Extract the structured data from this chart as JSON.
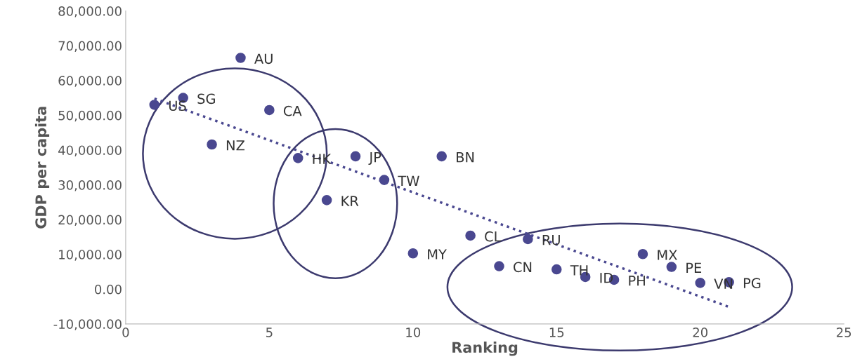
{
  "chart_data": {
    "type": "scatter",
    "xlabel": "Ranking",
    "ylabel": "GDP per capita",
    "xlim": [
      0,
      25
    ],
    "xticks": [
      0,
      5,
      10,
      15,
      20,
      25
    ],
    "ylim": [
      -10000,
      80000
    ],
    "yticks": [
      {
        "value": -10000,
        "label": "-10,000.00"
      },
      {
        "value": 0,
        "label": "0.00"
      },
      {
        "value": 10000,
        "label": "10,000.00"
      },
      {
        "value": 20000,
        "label": "20,000.00"
      },
      {
        "value": 30000,
        "label": "30,000.00"
      },
      {
        "value": 40000,
        "label": "40,000.00"
      },
      {
        "value": 50000,
        "label": "50,000.00"
      },
      {
        "value": 60000,
        "label": "60,000.00"
      },
      {
        "value": 70000,
        "label": "70,000.00"
      },
      {
        "value": 80000,
        "label": "80,000.00"
      }
    ],
    "grid": false,
    "legend": false,
    "marker": "circle",
    "series": [
      {
        "color": "#4a4890",
        "x": [
          1,
          2,
          3,
          4,
          5,
          6,
          7,
          8,
          9,
          10,
          11,
          12,
          13,
          14,
          15,
          16,
          17,
          18,
          19,
          20,
          21
        ],
        "values": [
          53000,
          55000,
          41600,
          66500,
          51500,
          37700,
          25600,
          38200,
          31400,
          10300,
          38200,
          15400,
          6600,
          14400,
          5700,
          3500,
          2700,
          10100,
          6400,
          1800,
          2000
        ]
      },
      {
        "type": "line",
        "color": "#4a4890",
        "line_style": "dotted",
        "marker": "none",
        "x": [
          1,
          21
        ],
        "values": [
          54800,
          -5100
        ]
      }
    ],
    "annotations": [
      {
        "text": "US",
        "x": 1,
        "y": 53000
      },
      {
        "text": "SG",
        "x": 2,
        "y": 55000
      },
      {
        "text": "NZ",
        "x": 3,
        "y": 41600
      },
      {
        "text": "AU",
        "x": 4,
        "y": 66500
      },
      {
        "text": "CA",
        "x": 5,
        "y": 51500
      },
      {
        "text": "HK",
        "x": 6,
        "y": 37700
      },
      {
        "text": "KR",
        "x": 7,
        "y": 25600
      },
      {
        "text": "JP",
        "x": 8,
        "y": 38200
      },
      {
        "text": "TW",
        "x": 9,
        "y": 31400
      },
      {
        "text": "MY",
        "x": 10,
        "y": 10300
      },
      {
        "text": "BN",
        "x": 11,
        "y": 38200
      },
      {
        "text": "CL",
        "x": 12,
        "y": 15400
      },
      {
        "text": "CN",
        "x": 13,
        "y": 6600
      },
      {
        "text": "RU",
        "x": 14,
        "y": 14400
      },
      {
        "text": "TH",
        "x": 15,
        "y": 5700
      },
      {
        "text": "ID",
        "x": 16,
        "y": 3500
      },
      {
        "text": "PH",
        "x": 17,
        "y": 2700
      },
      {
        "text": "MX",
        "x": 18,
        "y": 10100
      },
      {
        "text": "PE",
        "x": 19,
        "y": 6400
      },
      {
        "text": "VN",
        "x": 20,
        "y": 1800
      },
      {
        "text": "PG",
        "x": 21,
        "y": 2000
      }
    ]
  }
}
